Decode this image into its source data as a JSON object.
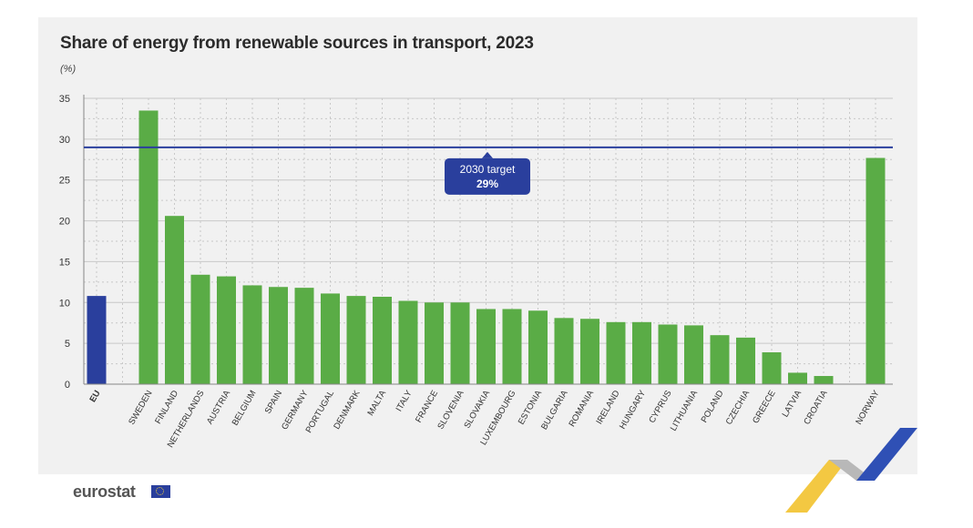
{
  "title": "Share of energy from renewable sources in transport, 2023",
  "unit": "(%)",
  "brand": "eurostat",
  "colors": {
    "eu": "#2a3f9d",
    "country": "#5aac46",
    "target_line": "#2a3f9d",
    "grid": "#c8c8c8"
  },
  "chart_data": {
    "type": "bar",
    "ylim": [
      0,
      35
    ],
    "yticks": [
      0,
      5,
      10,
      15,
      20,
      25,
      30,
      35
    ],
    "grid": true,
    "categories": [
      "EU",
      "SWEDEN",
      "FINLAND",
      "NETHERLANDS",
      "AUSTRIA",
      "BELGIUM",
      "SPAIN",
      "GERMANY",
      "PORTUGAL",
      "DENMARK",
      "MALTA",
      "ITALY",
      "FRANCE",
      "SLOVENIA",
      "SLOVAKIA",
      "LUXEMBOURG",
      "ESTONIA",
      "BULGARIA",
      "ROMANIA",
      "IRELAND",
      "HUNGARY",
      "CYPRUS",
      "LITHUANIA",
      "POLAND",
      "CZECHIA",
      "GREECE",
      "LATVIA",
      "CROATIA",
      "NORWAY"
    ],
    "values": [
      10.8,
      33.5,
      20.6,
      13.4,
      13.2,
      12.1,
      11.9,
      11.8,
      11.1,
      10.8,
      10.7,
      10.2,
      10.0,
      10.0,
      9.2,
      9.2,
      9.0,
      8.1,
      8.0,
      7.6,
      7.6,
      7.3,
      7.2,
      6.0,
      5.7,
      3.9,
      1.4,
      1.0,
      27.7
    ],
    "target": {
      "value": 29,
      "label_line1": "2030 target",
      "label_line2": "29%"
    }
  }
}
